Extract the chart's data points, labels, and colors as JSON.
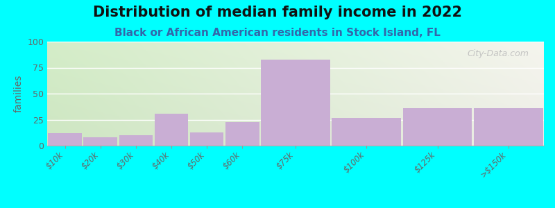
{
  "title": "Distribution of median family income in 2022",
  "subtitle": "Black or African American residents in Stock Island, FL",
  "ylabel": "families",
  "categories": [
    "$10k",
    "$20k",
    "$30k",
    "$40k",
    "$50k",
    "$60k",
    "$75k",
    "$100k",
    "$125k",
    ">$150k"
  ],
  "values": [
    12,
    8,
    10,
    31,
    13,
    23,
    83,
    27,
    36,
    36
  ],
  "bin_lefts": [
    0,
    1,
    2,
    3,
    4,
    5,
    6,
    8,
    10,
    12
  ],
  "bin_widths": [
    1,
    1,
    1,
    1,
    1,
    1,
    2,
    2,
    2,
    2
  ],
  "bar_color": "#c9aed4",
  "bg_color": "#00ffff",
  "ylim": [
    0,
    100
  ],
  "yticks": [
    0,
    25,
    50,
    75,
    100
  ],
  "title_fontsize": 15,
  "subtitle_fontsize": 11,
  "ylabel_fontsize": 10,
  "watermark": "City-Data.com"
}
